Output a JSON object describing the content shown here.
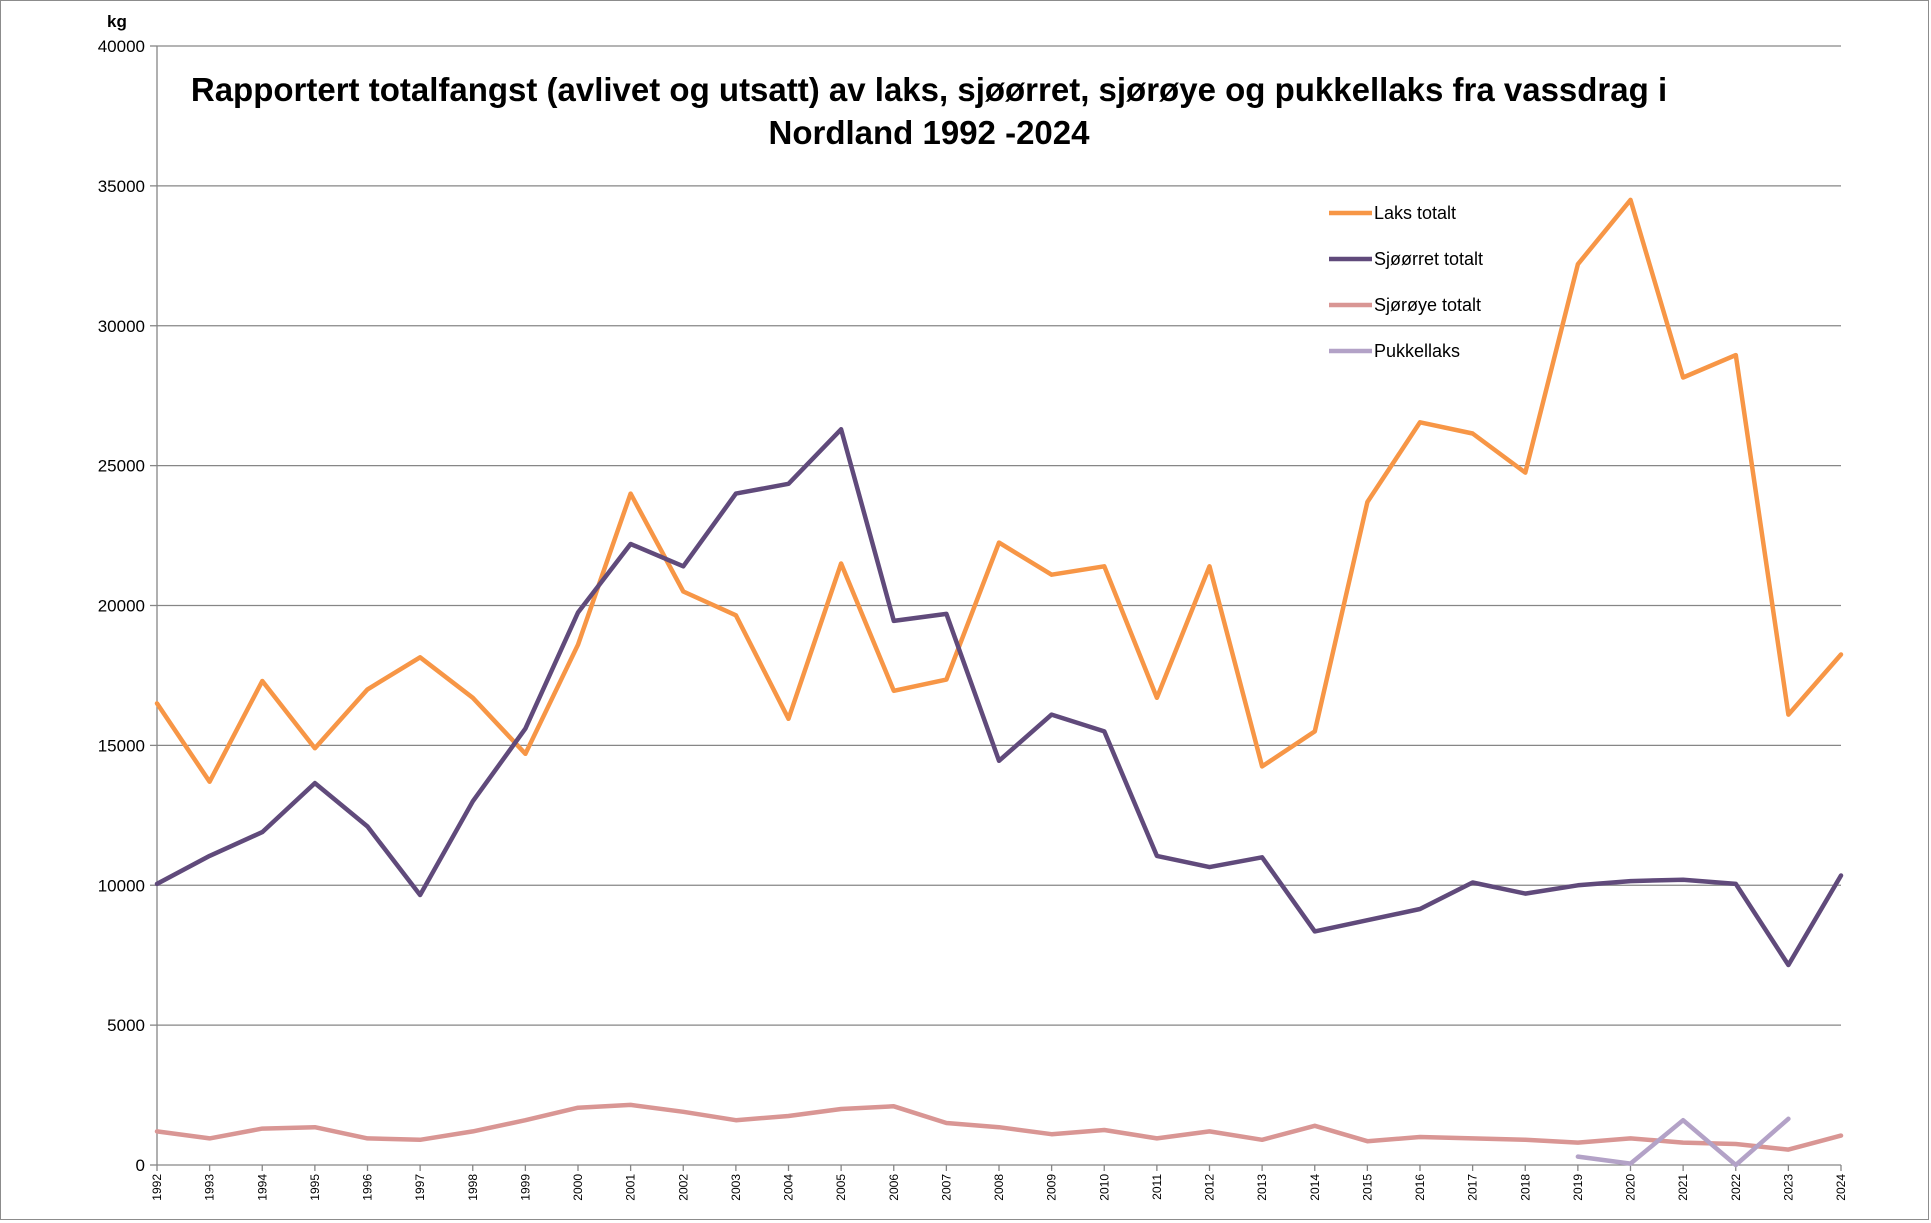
{
  "chart_data": {
    "type": "line",
    "title_line1": "Rapportert totalfangst (avlivet og utsatt) av laks, sjøørret, sjørøye og pukkellaks fra vassdrag i",
    "title_line2": "Nordland 1992 -2024",
    "ylabel": "kg",
    "xlabel": "",
    "ylim": [
      0,
      40000
    ],
    "y_ticks": [
      "0",
      "5000",
      "10000",
      "15000",
      "20000",
      "25000",
      "30000",
      "35000",
      "40000"
    ],
    "grid": true,
    "legend_position": "top-right",
    "categories": [
      "1992",
      "1993",
      "1994",
      "1995",
      "1996",
      "1997",
      "1998",
      "1999",
      "2000",
      "2001",
      "2002",
      "2003",
      "2004",
      "2005",
      "2006",
      "2007",
      "2008",
      "2009",
      "2010",
      "2011",
      "2012",
      "2013",
      "2014",
      "2015",
      "2016",
      "2017",
      "2018",
      "2019",
      "2020",
      "2021",
      "2022",
      "2023",
      "2024"
    ],
    "series": [
      {
        "name": "Laks totalt",
        "color": "#f79646",
        "values": [
          16500,
          13700,
          17300,
          14900,
          17000,
          18150,
          16700,
          14700,
          18600,
          24000,
          20500,
          19650,
          15950,
          21500,
          16950,
          17350,
          22250,
          21100,
          21400,
          16700,
          21400,
          14250,
          15500,
          23700,
          26550,
          26150,
          24750,
          32200,
          34500,
          28150,
          28950,
          16100,
          18250
        ]
      },
      {
        "name": "Sjøørret totalt",
        "color": "#604a7b",
        "values": [
          10050,
          11050,
          11900,
          13650,
          12100,
          9650,
          13000,
          15600,
          19750,
          22200,
          21400,
          24000,
          24350,
          26300,
          19450,
          19700,
          14450,
          16100,
          15500,
          11050,
          10650,
          11000,
          8350,
          8750,
          9150,
          10100,
          9700,
          10000,
          10150,
          10200,
          10050,
          7150,
          10350
        ]
      },
      {
        "name": "Sjørøye totalt",
        "color": "#d99694",
        "values": [
          1200,
          950,
          1300,
          1350,
          950,
          900,
          1200,
          1600,
          2050,
          2150,
          1900,
          1600,
          1750,
          2000,
          2100,
          1500,
          1350,
          1100,
          1250,
          950,
          1200,
          900,
          1400,
          850,
          1000,
          950,
          900,
          800,
          950,
          800,
          750,
          550,
          1050
        ]
      },
      {
        "name": "Pukkellaks",
        "color": "#b3a2c7",
        "values": [
          null,
          null,
          null,
          null,
          null,
          null,
          null,
          null,
          null,
          null,
          null,
          null,
          null,
          null,
          null,
          null,
          null,
          null,
          null,
          null,
          null,
          null,
          null,
          null,
          null,
          null,
          null,
          300,
          50,
          1600,
          0,
          1650,
          null
        ]
      }
    ]
  }
}
